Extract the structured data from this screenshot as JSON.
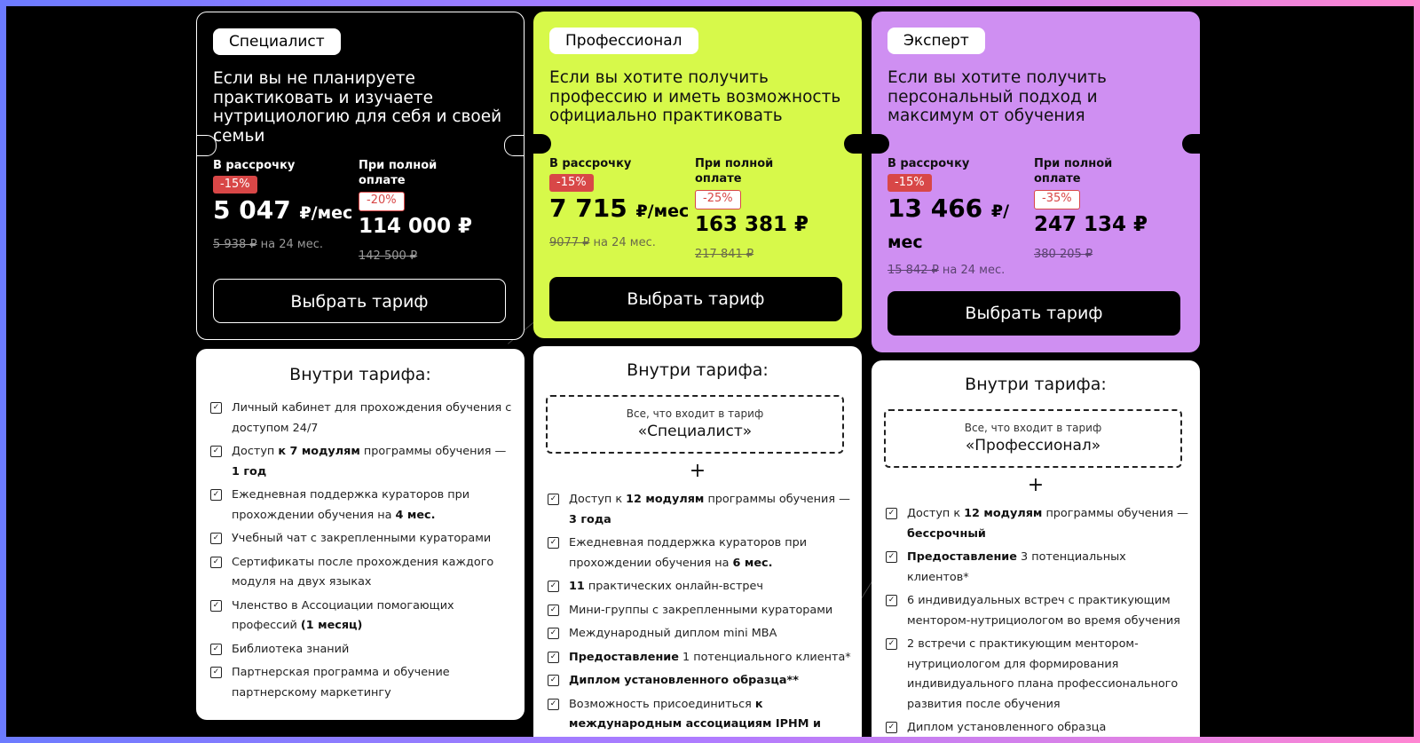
{
  "plans": [
    {
      "name": "Специалист",
      "description": "Если вы не планируете практиковать и изучаете нутрициологию для себя и своей семьи",
      "installment_label": "В рассрочку",
      "installment_discount": "-15%",
      "installment_price": "5 047",
      "installment_unit": "₽/мес",
      "installment_old": "5 938 ₽",
      "installment_term": "на 24 мес.",
      "full_label_1": "При полной",
      "full_label_2": "оплате",
      "full_discount": "-20%",
      "full_price": "114 000 ₽",
      "full_old": "142 500 ₽",
      "button": "Выбрать тариф",
      "inside_title": "Внутри тарифа:",
      "features": [
        [
          "Личный кабинет для прохождения обучения с доступом 24/7"
        ],
        [
          "Доступ ",
          "к 7 модулям",
          " программы обучения — ",
          "1 год"
        ],
        [
          "Ежедневная поддержка кураторов при прохождении обучения на ",
          "4 мес."
        ],
        [
          "Учебный чат с закрепленными кураторами"
        ],
        [
          "Сертификаты после прохождения каждого модуля на двух языках"
        ],
        [
          "Членство в Ассоциации помогающих профессий ",
          "(1 месяц)"
        ],
        [
          "Библиотека знаний"
        ],
        [
          "Партнерская программа и обучение партнерскому маркетингу"
        ]
      ]
    },
    {
      "name": "Профессионал",
      "description": "Если вы хотите получить профессию и иметь возможность официально практиковать",
      "installment_label": "В рассрочку",
      "installment_discount": "-15%",
      "installment_price": "7 715",
      "installment_unit": "₽/мес",
      "installment_old": "9077 ₽",
      "installment_term": "на 24 мес.",
      "full_label_1": "При полной",
      "full_label_2": "оплате",
      "full_discount": "-25%",
      "full_price": "163 381 ₽",
      "full_old": "217 841 ₽",
      "button": "Выбрать тариф",
      "inside_title": "Внутри тарифа:",
      "includes_caption": "Все, что входит в тариф",
      "includes_name": "«Специалист»",
      "plus": "+",
      "features": [
        [
          "Доступ к ",
          "12 модулям",
          " программы обучения — ",
          "3 года"
        ],
        [
          "Ежедневная поддержка кураторов при прохождении обучения на ",
          "6 мес."
        ],
        [
          "",
          "11",
          " практических онлайн-встреч"
        ],
        [
          "Мини-группы с закрепленными кураторами"
        ],
        [
          "Международный диплом mini MBA"
        ],
        [
          "",
          "Предоставление",
          " 1 потенциального клиента*"
        ],
        [
          "",
          "Диплом установленного образца**"
        ],
        [
          "Возможность присоединиться ",
          "к международным ассоциациям IPHM и CMA"
        ]
      ]
    },
    {
      "name": "Эксперт",
      "description": "Если вы хотите получить персональный подход и максимум от обучения",
      "installment_label": "В рассрочку",
      "installment_discount": "-15%",
      "installment_price": "13 466",
      "installment_unit": "₽/",
      "installment_unit2": "мес",
      "installment_old": "15 842 ₽",
      "installment_term": "на 24 мес.",
      "full_label_1": "При полной",
      "full_label_2": "оплате",
      "full_discount": "-35%",
      "full_price": "247 134 ₽",
      "full_old": "380 205 ₽",
      "button": "Выбрать тариф",
      "inside_title": "Внутри тарифа:",
      "includes_caption": "Все, что входит в тариф",
      "includes_name": "«Профессионал»",
      "plus": "+",
      "features": [
        [
          "Доступ к ",
          "12 модулям",
          " программы обучения — ",
          "бессрочный"
        ],
        [
          "",
          "Предоставление",
          " 3 потенциальных клиентов*"
        ],
        [
          "6 индивидуальных встреч с практикующим ментором-нутрициологом во время обучения"
        ],
        [
          "2 встречи с практикующим ментором-нутрициологом для формирования индивидуального плана профессионального развития после обучения"
        ],
        [
          "Диплом установленного образца"
        ]
      ]
    }
  ]
}
